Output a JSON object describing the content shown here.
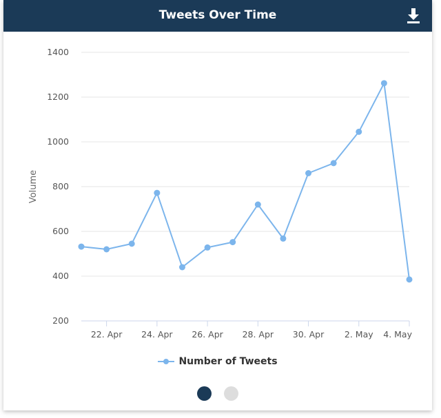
{
  "header": {
    "title": "Tweets Over Time",
    "download_icon": "download-icon"
  },
  "colors": {
    "header_bg": "#1b3a57",
    "series": "#7cb5ec",
    "grid": "#e6e6e6",
    "pager_active": "#1b3a57",
    "pager_inactive": "#dddddd"
  },
  "chart_data": {
    "type": "line",
    "title": "",
    "xlabel": "",
    "ylabel": "Volume",
    "ylim": [
      200,
      1400
    ],
    "yticks": [
      200,
      400,
      600,
      800,
      1000,
      1200,
      1400
    ],
    "x_tick_labels": [
      "22. Apr",
      "24. Apr",
      "26. Apr",
      "28. Apr",
      "30. Apr",
      "2. May",
      "4. May"
    ],
    "x": [
      "2018-04-21",
      "2018-04-22",
      "2018-04-23",
      "2018-04-24",
      "2018-04-25",
      "2018-04-26",
      "2018-04-27",
      "2018-04-28",
      "2018-04-29",
      "2018-04-30",
      "2018-05-01",
      "2018-05-02",
      "2018-05-03",
      "2018-05-04"
    ],
    "grid": true,
    "legend": "bottom-center",
    "series": [
      {
        "name": "Number of Tweets",
        "values": [
          532,
          520,
          545,
          772,
          440,
          528,
          552,
          720,
          568,
          860,
          905,
          1045,
          1262,
          385
        ]
      }
    ]
  },
  "pager": {
    "pages": 2,
    "active_page": 1
  }
}
